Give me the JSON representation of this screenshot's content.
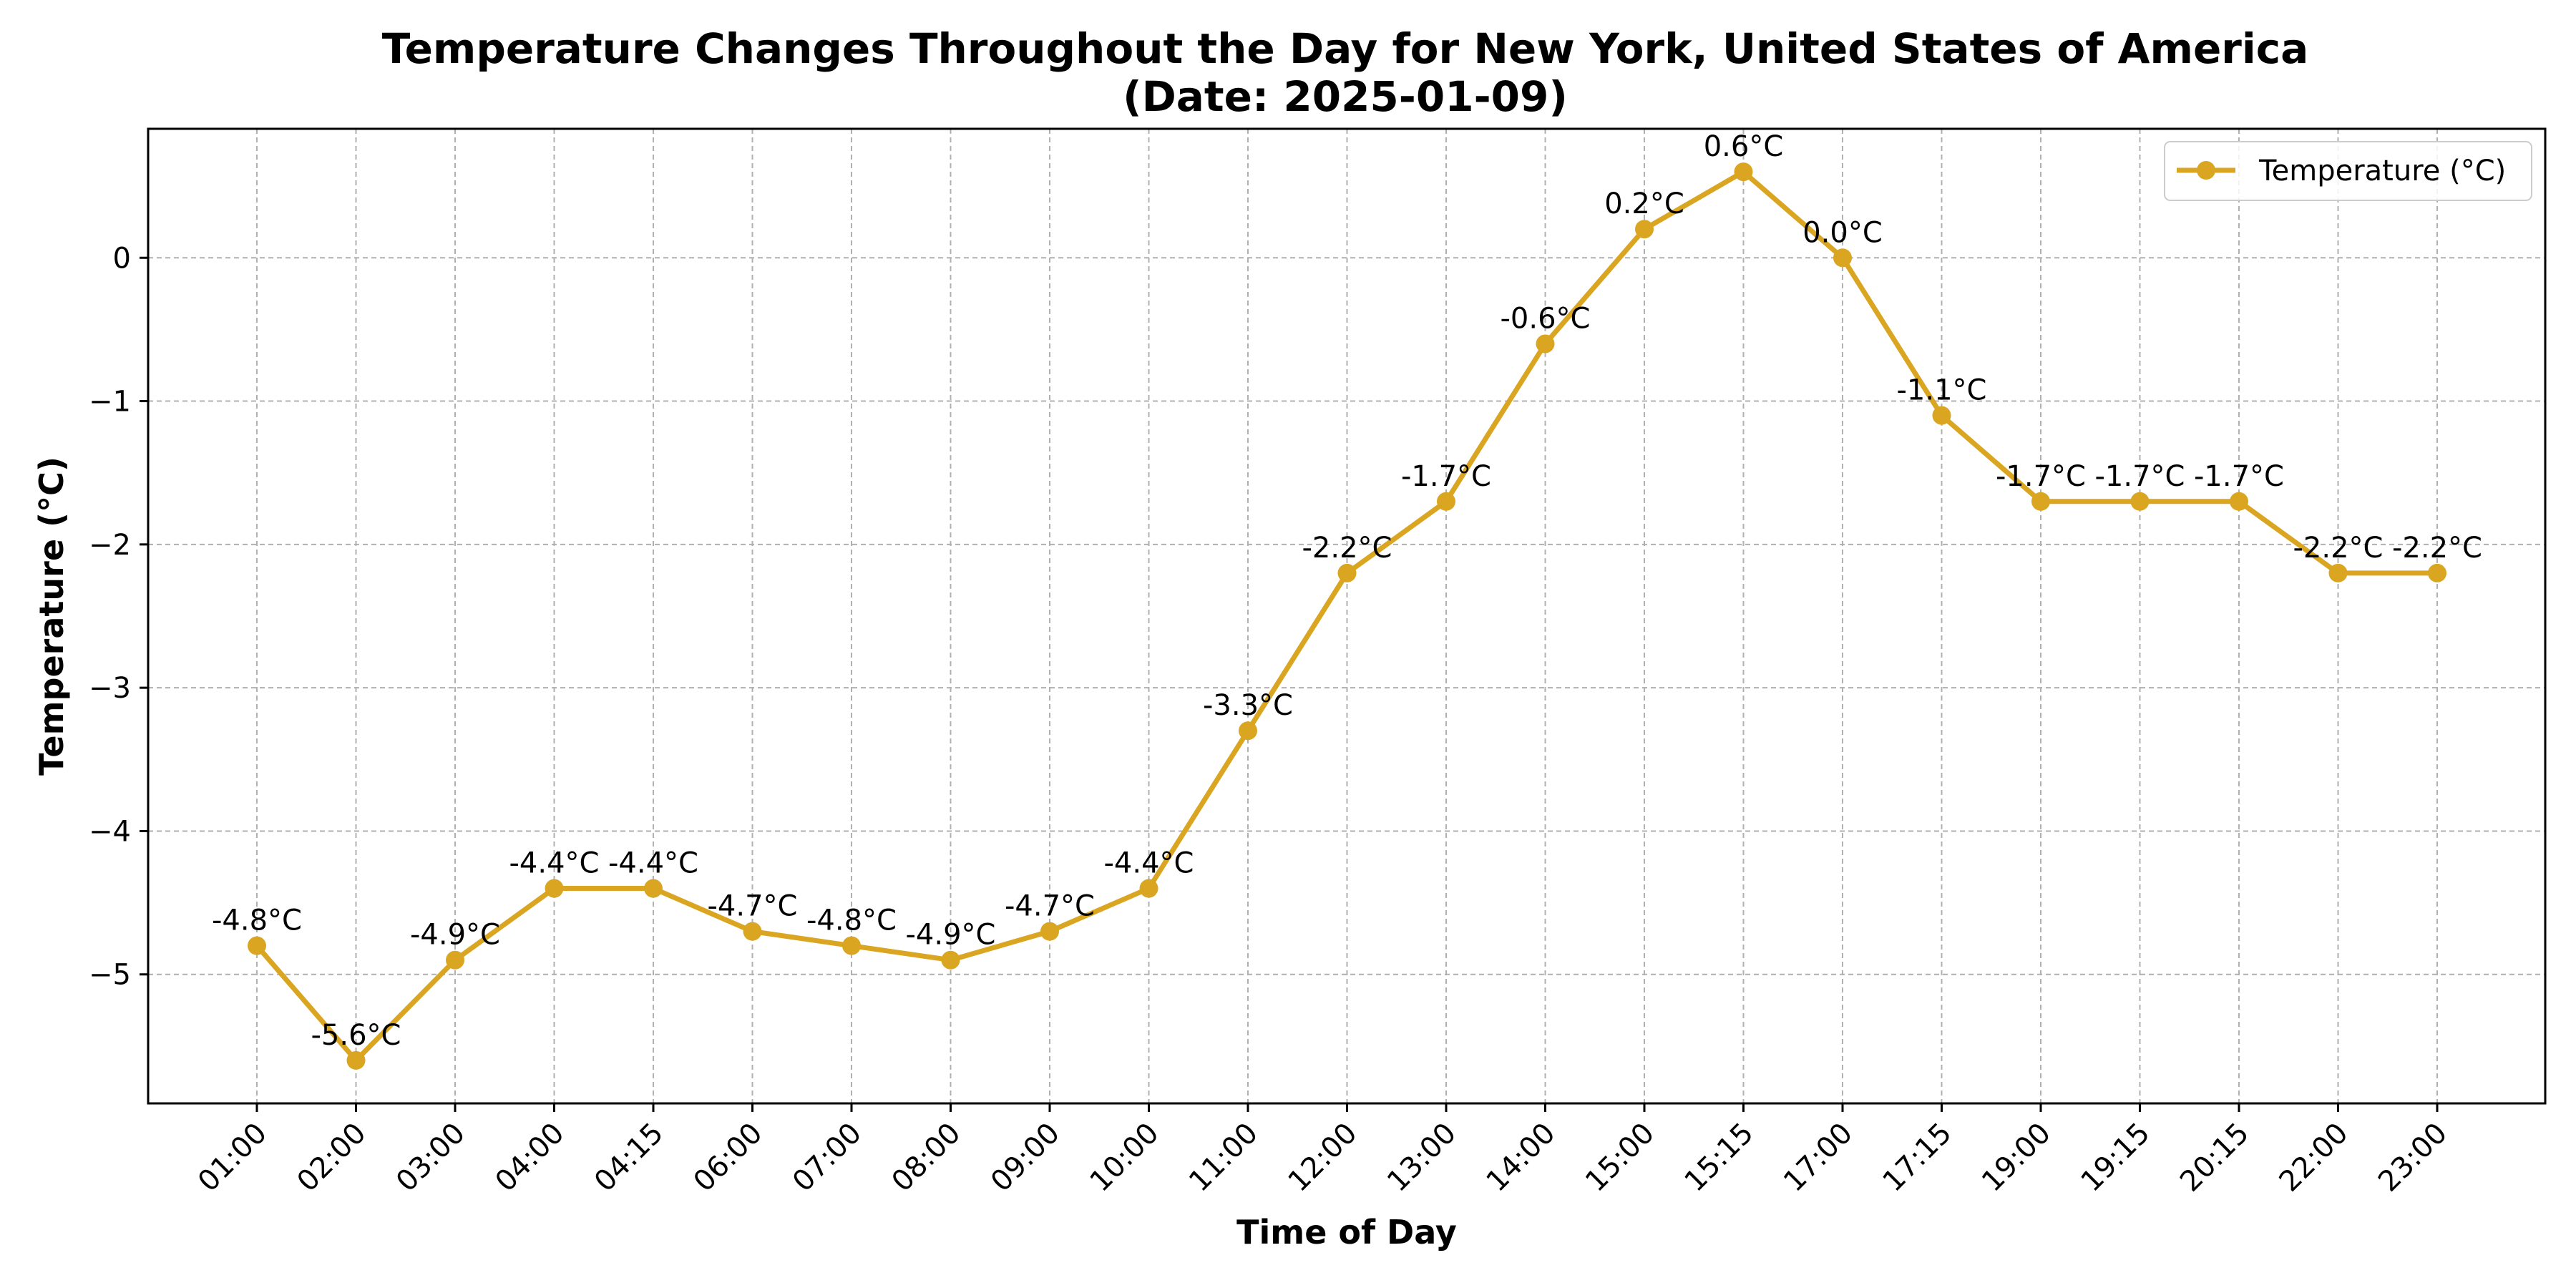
{
  "chart_data": {
    "type": "line",
    "title": "Temperature Changes Throughout the Day for New York, United States of America",
    "subtitle": "(Date: 2025-01-09)",
    "xlabel": "Time of Day",
    "ylabel": "Temperature (°C)",
    "ylim": [
      -5.9,
      0.9
    ],
    "yticks": [
      -5,
      -4,
      -3,
      -2,
      -1,
      0
    ],
    "ytick_labels": [
      "−5",
      "−4",
      "−3",
      "−2",
      "−1",
      "0"
    ],
    "grid": true,
    "legend_position": "top-right",
    "categories": [
      "01:00",
      "02:00",
      "03:00",
      "04:00",
      "04:15",
      "06:00",
      "07:00",
      "08:00",
      "09:00",
      "10:00",
      "11:00",
      "12:00",
      "13:00",
      "14:00",
      "15:00",
      "15:15",
      "17:00",
      "17:15",
      "19:00",
      "19:15",
      "20:15",
      "22:00",
      "23:00"
    ],
    "series": [
      {
        "name": "Temperature (°C)",
        "color": "#DAA520",
        "values": [
          -4.8,
          -5.6,
          -4.9,
          -4.4,
          -4.4,
          -4.7,
          -4.8,
          -4.9,
          -4.7,
          -4.4,
          -3.3,
          -2.2,
          -1.7,
          -0.6,
          0.2,
          0.6,
          0.0,
          -1.1,
          -1.7,
          -1.7,
          -1.7,
          -2.2,
          -2.2
        ],
        "labels": [
          "-4.8°C",
          "-5.6°C",
          "-4.9°C",
          "-4.4°C",
          "-4.4°C",
          "-4.7°C",
          "-4.8°C",
          "-4.9°C",
          "-4.7°C",
          "-4.4°C",
          "-3.3°C",
          "-2.2°C",
          "-1.7°C",
          "-0.6°C",
          "0.2°C",
          "0.6°C",
          "0.0°C",
          "-1.1°C",
          "-1.7°C",
          "-1.7°C",
          "-1.7°C",
          "-2.2°C",
          "-2.2°C"
        ]
      }
    ]
  }
}
